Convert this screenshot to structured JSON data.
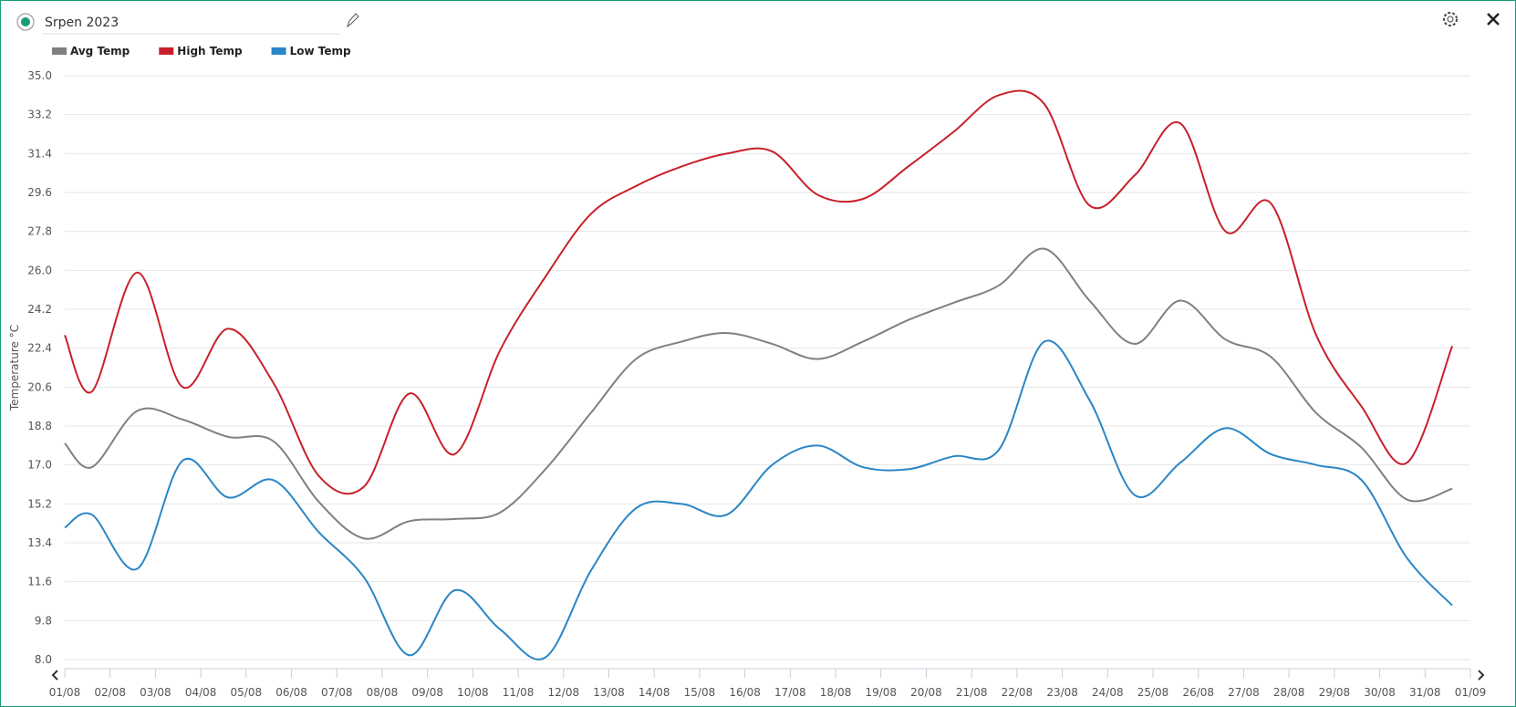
{
  "chart_data": {
    "type": "line",
    "title": "Srpen 2023",
    "ylabel": "Temperature °C",
    "grid": true,
    "x": [
      0,
      0.6,
      1.6,
      2.6,
      3.6,
      4.6,
      5.6,
      6.6,
      7.6,
      8.6,
      9.6,
      10.6,
      11.6,
      12.6,
      13.6,
      14.6,
      15.6,
      16.6,
      17.6,
      18.6,
      19.6,
      20.6,
      21.6,
      22.6,
      23.6,
      24.6,
      25.6,
      26.6,
      27.6,
      28.6,
      29.6,
      30.6
    ],
    "series": [
      {
        "name": "Avg Temp",
        "color": "#808080",
        "values": [
          18.0,
          16.9,
          19.5,
          19.1,
          18.3,
          18.1,
          15.3,
          13.6,
          14.4,
          14.5,
          14.8,
          16.8,
          19.4,
          21.9,
          22.7,
          23.1,
          22.6,
          21.9,
          22.7,
          23.7,
          24.5,
          25.3,
          27.0,
          24.6,
          22.6,
          24.6,
          22.8,
          22.0,
          19.4,
          17.8,
          15.4,
          15.9
        ]
      },
      {
        "name": "High Temp",
        "color": "#c8202a",
        "values": [
          23.0,
          20.4,
          25.9,
          20.6,
          23.3,
          20.8,
          16.5,
          16.0,
          20.3,
          17.5,
          22.3,
          25.7,
          28.6,
          29.9,
          30.8,
          31.4,
          31.5,
          29.5,
          29.3,
          30.8,
          32.4,
          34.1,
          33.7,
          29.0,
          30.4,
          32.8,
          27.8,
          29.1,
          23.0,
          19.7,
          17.1,
          22.5
        ]
      },
      {
        "name": "Low Temp",
        "color": "#2a86c6",
        "values": [
          14.1,
          14.7,
          12.2,
          17.2,
          15.5,
          16.3,
          13.9,
          11.8,
          8.2,
          11.2,
          9.4,
          8.1,
          12.1,
          15.0,
          15.2,
          14.7,
          17.0,
          17.9,
          16.9,
          16.8,
          17.4,
          17.7,
          22.7,
          20.0,
          15.6,
          17.1,
          18.7,
          17.5,
          17.0,
          16.3,
          12.7,
          10.5
        ]
      }
    ],
    "xlim": [
      0,
      31
    ],
    "xticks": [
      {
        "value": 0,
        "label": "01/08"
      },
      {
        "value": 1,
        "label": "02/08"
      },
      {
        "value": 2,
        "label": "03/08"
      },
      {
        "value": 3,
        "label": "04/08"
      },
      {
        "value": 4,
        "label": "05/08"
      },
      {
        "value": 5,
        "label": "06/08"
      },
      {
        "value": 6,
        "label": "07/08"
      },
      {
        "value": 7,
        "label": "08/08"
      },
      {
        "value": 8,
        "label": "09/08"
      },
      {
        "value": 9,
        "label": "10/08"
      },
      {
        "value": 10,
        "label": "11/08"
      },
      {
        "value": 11,
        "label": "12/08"
      },
      {
        "value": 12,
        "label": "13/08"
      },
      {
        "value": 13,
        "label": "14/08"
      },
      {
        "value": 14,
        "label": "15/08"
      },
      {
        "value": 15,
        "label": "16/08"
      },
      {
        "value": 16,
        "label": "17/08"
      },
      {
        "value": 17,
        "label": "18/08"
      },
      {
        "value": 18,
        "label": "19/08"
      },
      {
        "value": 19,
        "label": "20/08"
      },
      {
        "value": 20,
        "label": "21/08"
      },
      {
        "value": 21,
        "label": "22/08"
      },
      {
        "value": 22,
        "label": "23/08"
      },
      {
        "value": 23,
        "label": "24/08"
      },
      {
        "value": 24,
        "label": "25/08"
      },
      {
        "value": 25,
        "label": "26/08"
      },
      {
        "value": 26,
        "label": "27/08"
      },
      {
        "value": 27,
        "label": "28/08"
      },
      {
        "value": 28,
        "label": "29/08"
      },
      {
        "value": 29,
        "label": "30/08"
      },
      {
        "value": 30,
        "label": "31/08"
      },
      {
        "value": 31,
        "label": "01/09"
      }
    ],
    "ylim": [
      8,
      35
    ],
    "yticks": [
      {
        "value": 8,
        "label": "8.0"
      },
      9.8,
      11.6,
      13.4,
      15.2,
      {
        "value": 17,
        "label": "17.0"
      },
      18.8,
      20.6,
      22.4,
      24.2,
      {
        "value": 26,
        "label": "26.0"
      },
      27.8,
      29.6,
      31.4,
      33.2,
      {
        "value": 35,
        "label": "35.0"
      }
    ]
  }
}
